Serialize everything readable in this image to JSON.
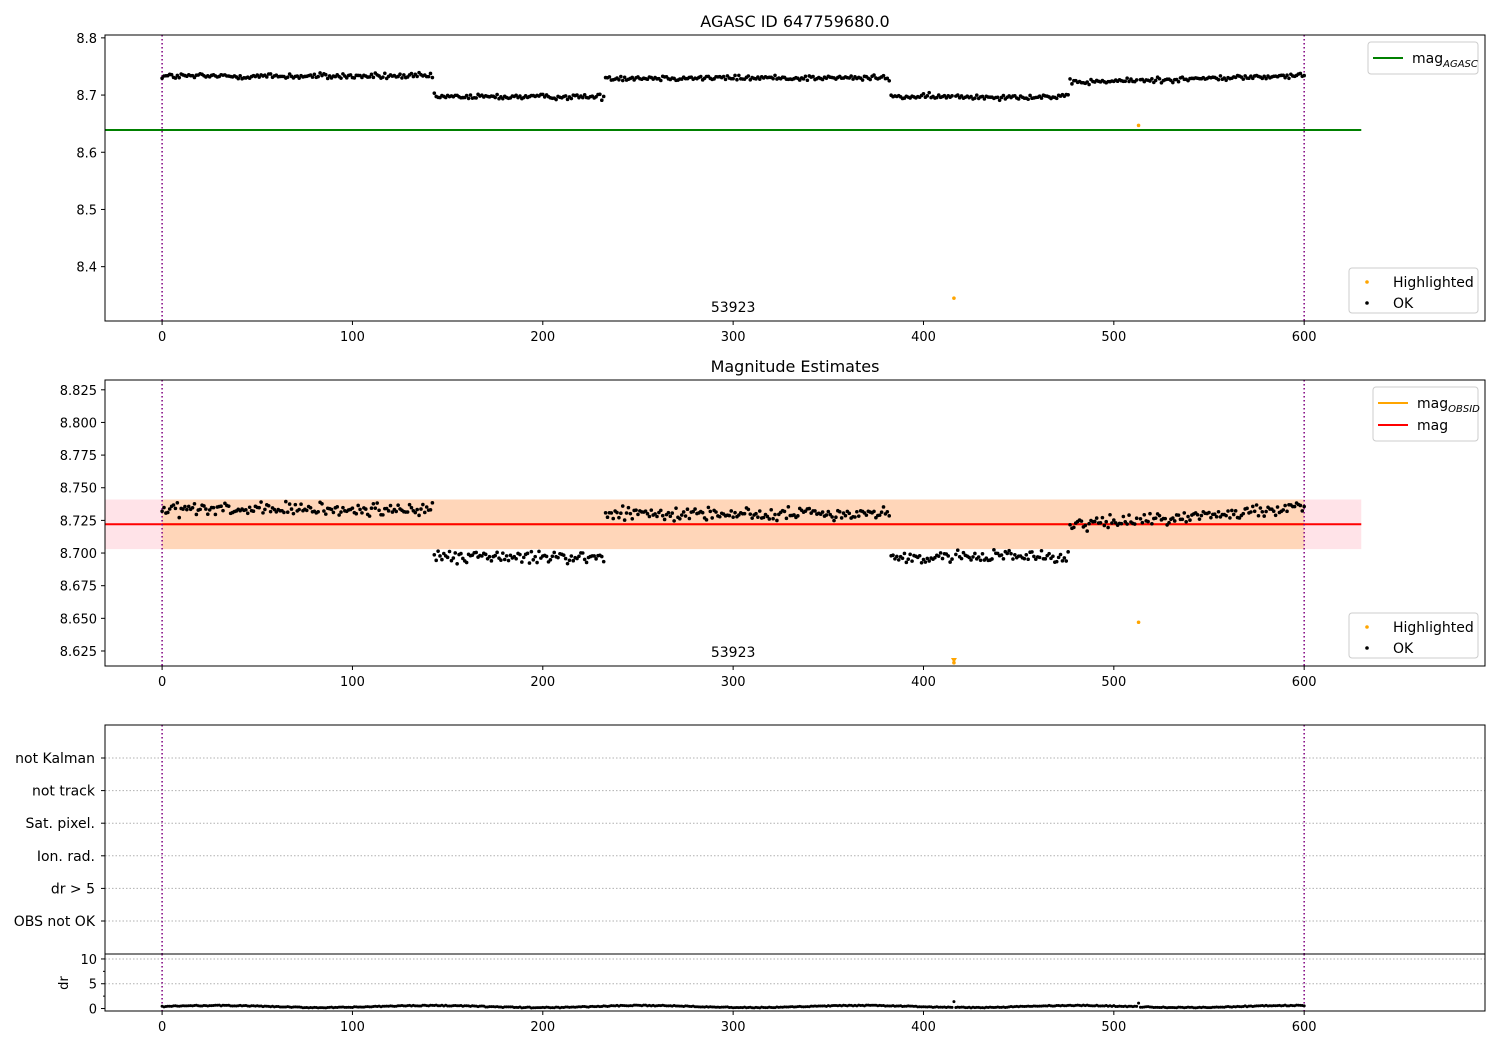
{
  "figure": {
    "title_top": "AGASC ID 647759680.0",
    "title_middle": "Magnitude Estimates"
  },
  "chart_data": [
    {
      "id": "top",
      "type": "scatter",
      "title": "AGASC ID 647759680.0",
      "xlim": [
        -30,
        695
      ],
      "ylim": [
        8.305,
        8.805
      ],
      "xticks": [
        0,
        100,
        200,
        300,
        400,
        500,
        600
      ],
      "yticks": [
        8.4,
        8.5,
        8.6,
        8.7,
        8.8
      ],
      "ytick_labels": [
        "8.4",
        "8.5",
        "8.6",
        "8.7",
        "8.8"
      ],
      "mag_agasc": 8.639,
      "mag_agasc_x_range": [
        -30,
        630
      ],
      "obs_boundaries": [
        0,
        600
      ],
      "obsid_label": {
        "text": "53923",
        "x": 300
      },
      "highlighted_points": [
        {
          "x": 513,
          "y": 8.647
        },
        {
          "x": 416,
          "y": 8.345
        }
      ],
      "ok_series_segments": [
        {
          "x0": 0,
          "x1": 143,
          "base": 8.733,
          "amp": 0.009,
          "drift": 0.0
        },
        {
          "x0": 143,
          "x1": 233,
          "base": 8.697,
          "amp": 0.008,
          "drift": 0.0
        },
        {
          "x0": 233,
          "x1": 383,
          "base": 8.73,
          "amp": 0.008,
          "drift": 0.0
        },
        {
          "x0": 383,
          "x1": 477,
          "base": 8.697,
          "amp": 0.008,
          "drift": 0.0
        },
        {
          "x0": 477,
          "x1": 600,
          "base": 8.728,
          "amp": 0.008,
          "drift": 0.012
        }
      ],
      "legend_upper": [
        {
          "label": "mag",
          "sub": "AGASC",
          "color": "#008000"
        }
      ],
      "legend_lower": [
        {
          "label": "Highlighted",
          "color": "#ffa500"
        },
        {
          "label": "OK",
          "color": "#000000"
        }
      ]
    },
    {
      "id": "middle",
      "type": "scatter",
      "title": "Magnitude Estimates",
      "xlim": [
        -30,
        695
      ],
      "ylim": [
        8.6135,
        8.8325
      ],
      "xticks": [
        0,
        100,
        200,
        300,
        400,
        500,
        600
      ],
      "yticks": [
        8.625,
        8.65,
        8.675,
        8.7,
        8.725,
        8.75,
        8.775,
        8.8,
        8.825
      ],
      "ytick_labels": [
        "8.625",
        "8.650",
        "8.675",
        "8.700",
        "8.725",
        "8.750",
        "8.775",
        "8.800",
        "8.825"
      ],
      "mag": 8.722,
      "mag_band": [
        8.703,
        8.741
      ],
      "mag_obsid": 8.722,
      "obsid_band": [
        8.703,
        8.741
      ],
      "band_x_range": [
        -30,
        630
      ],
      "obs_boundaries": [
        0,
        600
      ],
      "obsid_label": {
        "text": "53923",
        "x": 300
      },
      "highlighted_points": [
        {
          "x": 513,
          "y": 8.647
        },
        {
          "x": 416,
          "y": 8.616
        }
      ],
      "ok_series_segments": [
        {
          "x0": 0,
          "x1": 143,
          "base": 8.733,
          "amp": 0.009,
          "drift": 0.0
        },
        {
          "x0": 143,
          "x1": 233,
          "base": 8.697,
          "amp": 0.008,
          "drift": 0.0
        },
        {
          "x0": 233,
          "x1": 383,
          "base": 8.73,
          "amp": 0.008,
          "drift": 0.0
        },
        {
          "x0": 383,
          "x1": 477,
          "base": 8.697,
          "amp": 0.008,
          "drift": 0.0
        },
        {
          "x0": 477,
          "x1": 600,
          "base": 8.728,
          "amp": 0.008,
          "drift": 0.012
        }
      ],
      "legend_upper": [
        {
          "label": "mag",
          "sub": "OBSID",
          "color": "#ffa500"
        },
        {
          "label": "mag",
          "sub": "",
          "color": "#ff0000"
        }
      ],
      "legend_lower": [
        {
          "label": "Highlighted",
          "color": "#ffa500"
        },
        {
          "label": "OK",
          "color": "#000000"
        }
      ]
    },
    {
      "id": "flags",
      "type": "scatter",
      "xlim": [
        -30,
        695
      ],
      "flag_labels": [
        "OBS not OK",
        "dr > 5",
        "Ion. rad.",
        "Sat. pixel.",
        "not track",
        "not Kalman"
      ],
      "obs_boundaries": [
        0,
        600
      ]
    },
    {
      "id": "dr",
      "type": "scatter",
      "ylabel": "dr",
      "xlim": [
        -30,
        695
      ],
      "ylim": [
        -0.5,
        11
      ],
      "xticks": [
        0,
        100,
        200,
        300,
        400,
        500,
        600
      ],
      "yticks": [
        0,
        5,
        10
      ],
      "ytick_labels": [
        "0",
        "5",
        "10"
      ],
      "obs_boundaries": [
        0,
        600
      ],
      "dr_level": 0.4,
      "dr_amp": 0.35,
      "dr_spikes": [
        {
          "x": 416,
          "y": 1.4
        },
        {
          "x": 513,
          "y": 1.1
        }
      ]
    }
  ]
}
